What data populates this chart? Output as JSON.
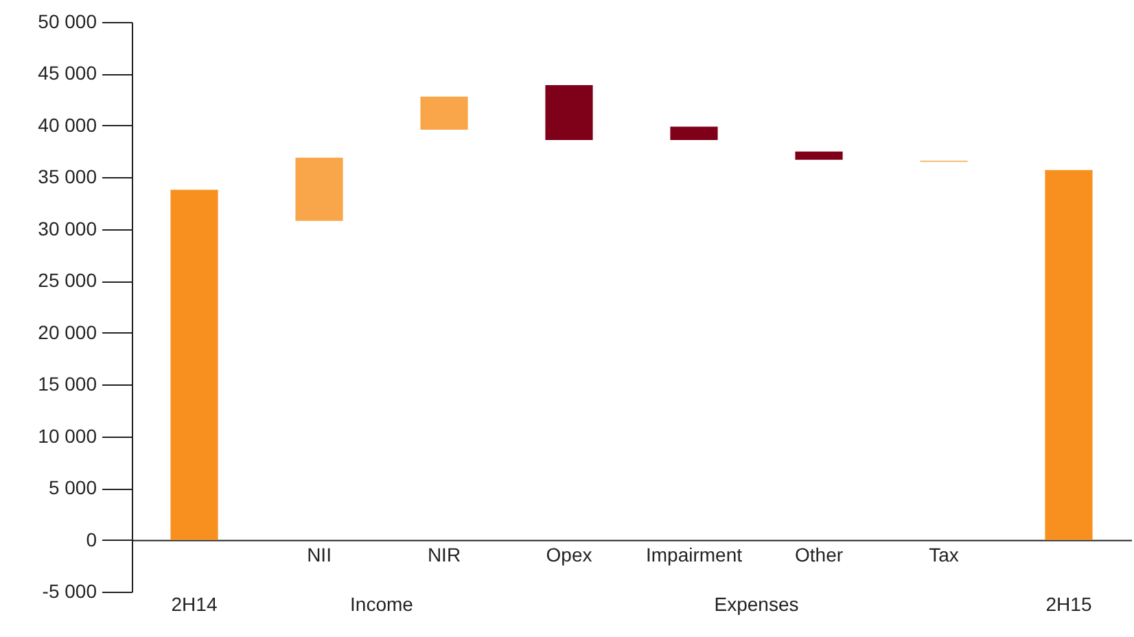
{
  "chart_data": {
    "type": "bar",
    "categories": [
      "2H14",
      "NII",
      "NIR",
      "Opex",
      "Impairment",
      "Other",
      "Tax",
      "2H15"
    ],
    "values": [
      33800,
      6100,
      3200,
      -5300,
      -1300,
      -800,
      -100,
      35700
    ],
    "base": [
      0,
      30800,
      39600,
      43900,
      39900,
      37500,
      36600,
      0
    ],
    "colors": [
      "#f7901e",
      "#f9a54a",
      "#f9a54a",
      "#7f0019",
      "#7f0019",
      "#7f0019",
      "#f9a54a",
      "#f7901e"
    ],
    "ylim": [
      -5000,
      50000
    ],
    "yticks": [
      {
        "value": -5000,
        "label": "-5 000"
      },
      {
        "value": 0,
        "label": "0"
      },
      {
        "value": 5000,
        "label": "5 000"
      },
      {
        "value": 10000,
        "label": "10 000"
      },
      {
        "value": 15000,
        "label": "15 000"
      },
      {
        "value": 20000,
        "label": "20 000"
      },
      {
        "value": 25000,
        "label": "25 000"
      },
      {
        "value": 30000,
        "label": "30 000"
      },
      {
        "value": 35000,
        "label": "35 000"
      },
      {
        "value": 40000,
        "label": "40 000"
      },
      {
        "value": 45000,
        "label": "45 000"
      },
      {
        "value": 50000,
        "label": "50 000"
      }
    ],
    "annotations": [
      "Income",
      "Expenses"
    ],
    "grid": false
  }
}
